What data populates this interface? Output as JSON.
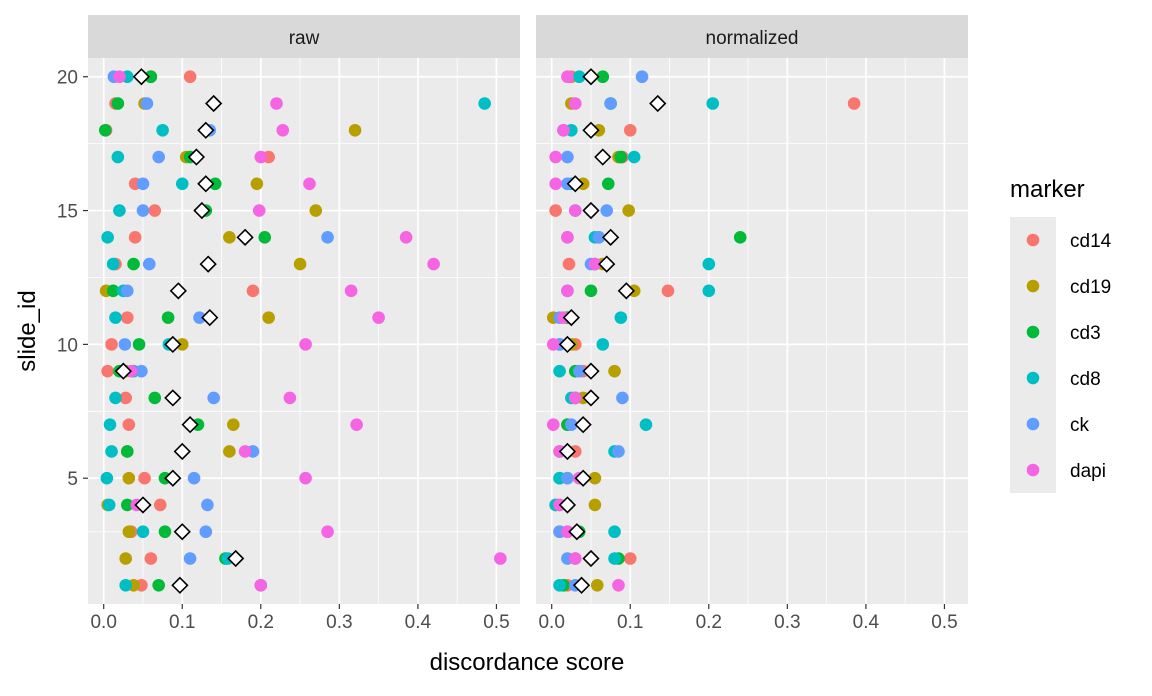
{
  "chart_data": {
    "type": "scatter",
    "xlabel": "discordance score",
    "ylabel": "slide_id",
    "xlim": [
      -0.02,
      0.53
    ],
    "ylim": [
      0.3,
      20.7
    ],
    "x_ticks": [
      "0.0",
      "0.1",
      "0.2",
      "0.3",
      "0.4",
      "0.5"
    ],
    "y_ticks": [
      "5",
      "10",
      "15",
      "20"
    ],
    "grid": true,
    "facets": [
      "raw",
      "normalized"
    ],
    "legend": {
      "title": "marker",
      "position": "right",
      "entries": [
        {
          "name": "cd14",
          "color": "#F8766D"
        },
        {
          "name": "cd19",
          "color": "#B79F00"
        },
        {
          "name": "cd3",
          "color": "#00BA38"
        },
        {
          "name": "cd8",
          "color": "#00BFC4"
        },
        {
          "name": "ck",
          "color": "#619CFF"
        },
        {
          "name": "dapi",
          "color": "#F564E3"
        }
      ]
    },
    "mean_marker": {
      "shape": "open-diamond",
      "color": "#000000"
    },
    "series": {
      "raw": {
        "cd14": [
          [
            0.048,
            1
          ],
          [
            0.06,
            2
          ],
          [
            0.035,
            3
          ],
          [
            0.072,
            4
          ],
          [
            0.052,
            5
          ],
          [
            0.03,
            6
          ],
          [
            0.032,
            7
          ],
          [
            0.028,
            8
          ],
          [
            0.005,
            9
          ],
          [
            0.01,
            10
          ],
          [
            0.03,
            11
          ],
          [
            0.19,
            12
          ],
          [
            0.015,
            13
          ],
          [
            0.04,
            14
          ],
          [
            0.065,
            15
          ],
          [
            0.04,
            16
          ],
          [
            0.21,
            17
          ],
          [
            0.003,
            18
          ],
          [
            0.015,
            19
          ],
          [
            0.11,
            20
          ]
        ],
        "cd19": [
          [
            0.038,
            1
          ],
          [
            0.028,
            2
          ],
          [
            0.032,
            3
          ],
          [
            0.005,
            4
          ],
          [
            0.032,
            5
          ],
          [
            0.16,
            6
          ],
          [
            0.165,
            7
          ],
          [
            0.088,
            8
          ],
          [
            0.028,
            9
          ],
          [
            0.1,
            10
          ],
          [
            0.21,
            11
          ],
          [
            0.003,
            12
          ],
          [
            0.25,
            13
          ],
          [
            0.16,
            14
          ],
          [
            0.27,
            15
          ],
          [
            0.195,
            16
          ],
          [
            0.105,
            17
          ],
          [
            0.32,
            18
          ],
          [
            0.052,
            19
          ],
          [
            0.06,
            20
          ]
        ],
        "cd3": [
          [
            0.07,
            1
          ],
          [
            0.155,
            2
          ],
          [
            0.078,
            3
          ],
          [
            0.03,
            4
          ],
          [
            0.078,
            5
          ],
          [
            0.03,
            6
          ],
          [
            0.12,
            7
          ],
          [
            0.065,
            8
          ],
          [
            0.02,
            9
          ],
          [
            0.045,
            10
          ],
          [
            0.082,
            11
          ],
          [
            0.012,
            12
          ],
          [
            0.038,
            13
          ],
          [
            0.205,
            14
          ],
          [
            0.13,
            15
          ],
          [
            0.142,
            16
          ],
          [
            0.11,
            17
          ],
          [
            0.002,
            18
          ],
          [
            0.018,
            19
          ],
          [
            0.06,
            20
          ]
        ],
        "cd8": [
          [
            0.028,
            1
          ],
          [
            0.158,
            2
          ],
          [
            0.05,
            3
          ],
          [
            0.007,
            4
          ],
          [
            0.004,
            5
          ],
          [
            0.01,
            6
          ],
          [
            0.008,
            7
          ],
          [
            0.015,
            8
          ],
          [
            0.038,
            9
          ],
          [
            0.083,
            10
          ],
          [
            0.015,
            11
          ],
          [
            0.025,
            12
          ],
          [
            0.012,
            13
          ],
          [
            0.005,
            14
          ],
          [
            0.02,
            15
          ],
          [
            0.1,
            16
          ],
          [
            0.018,
            17
          ],
          [
            0.075,
            18
          ],
          [
            0.485,
            19
          ],
          [
            0.03,
            20
          ]
        ],
        "ck": [
          [
            0.2,
            1
          ],
          [
            0.11,
            2
          ],
          [
            0.13,
            3
          ],
          [
            0.132,
            4
          ],
          [
            0.115,
            5
          ],
          [
            0.19,
            6
          ],
          [
            0.11,
            7
          ],
          [
            0.14,
            8
          ],
          [
            0.048,
            9
          ],
          [
            0.027,
            10
          ],
          [
            0.122,
            11
          ],
          [
            0.03,
            12
          ],
          [
            0.058,
            13
          ],
          [
            0.285,
            14
          ],
          [
            0.05,
            15
          ],
          [
            0.05,
            16
          ],
          [
            0.07,
            17
          ],
          [
            0.135,
            18
          ],
          [
            0.055,
            19
          ],
          [
            0.013,
            20
          ]
        ],
        "dapi": [
          [
            0.2,
            1
          ],
          [
            0.505,
            2
          ],
          [
            0.285,
            3
          ],
          [
            0.042,
            4
          ],
          [
            0.257,
            5
          ],
          [
            0.18,
            6
          ],
          [
            0.322,
            7
          ],
          [
            0.237,
            8
          ],
          [
            0.035,
            9
          ],
          [
            0.257,
            10
          ],
          [
            0.35,
            11
          ],
          [
            0.315,
            12
          ],
          [
            0.42,
            13
          ],
          [
            0.385,
            14
          ],
          [
            0.198,
            15
          ],
          [
            0.262,
            16
          ],
          [
            0.2,
            17
          ],
          [
            0.228,
            18
          ],
          [
            0.22,
            19
          ],
          [
            0.02,
            20
          ]
        ]
      },
      "raw_mean": [
        [
          0.097,
          1
        ],
        [
          0.168,
          2
        ],
        [
          0.1,
          3
        ],
        [
          0.05,
          4
        ],
        [
          0.088,
          5
        ],
        [
          0.1,
          6
        ],
        [
          0.11,
          7
        ],
        [
          0.088,
          8
        ],
        [
          0.025,
          9
        ],
        [
          0.088,
          10
        ],
        [
          0.135,
          11
        ],
        [
          0.095,
          12
        ],
        [
          0.133,
          13
        ],
        [
          0.18,
          14
        ],
        [
          0.125,
          15
        ],
        [
          0.13,
          16
        ],
        [
          0.118,
          17
        ],
        [
          0.13,
          18
        ],
        [
          0.14,
          19
        ],
        [
          0.048,
          20
        ]
      ],
      "normalized": {
        "cd14": [
          [
            0.02,
            1
          ],
          [
            0.1,
            2
          ],
          [
            0.02,
            3
          ],
          [
            0.005,
            4
          ],
          [
            0.02,
            5
          ],
          [
            0.03,
            6
          ],
          [
            0.02,
            7
          ],
          [
            0.03,
            8
          ],
          [
            0.04,
            9
          ],
          [
            0.03,
            10
          ],
          [
            0.02,
            11
          ],
          [
            0.148,
            12
          ],
          [
            0.022,
            13
          ],
          [
            0.02,
            14
          ],
          [
            0.005,
            15
          ],
          [
            0.02,
            16
          ],
          [
            0.09,
            17
          ],
          [
            0.1,
            18
          ],
          [
            0.385,
            19
          ],
          [
            0.025,
            20
          ]
        ],
        "cd19": [
          [
            0.058,
            1
          ],
          [
            0.03,
            2
          ],
          [
            0.01,
            3
          ],
          [
            0.055,
            4
          ],
          [
            0.055,
            5
          ],
          [
            0.02,
            6
          ],
          [
            0.04,
            7
          ],
          [
            0.04,
            8
          ],
          [
            0.08,
            9
          ],
          [
            0.025,
            10
          ],
          [
            0.002,
            11
          ],
          [
            0.105,
            12
          ],
          [
            0.065,
            13
          ],
          [
            0.06,
            14
          ],
          [
            0.098,
            15
          ],
          [
            0.04,
            16
          ],
          [
            0.085,
            17
          ],
          [
            0.06,
            18
          ],
          [
            0.025,
            19
          ],
          [
            0.05,
            20
          ]
        ],
        "cd3": [
          [
            0.015,
            1
          ],
          [
            0.085,
            2
          ],
          [
            0.035,
            3
          ],
          [
            0.02,
            4
          ],
          [
            0.01,
            5
          ],
          [
            0.01,
            6
          ],
          [
            0.02,
            7
          ],
          [
            0.03,
            8
          ],
          [
            0.03,
            9
          ],
          [
            0.01,
            10
          ],
          [
            0.02,
            11
          ],
          [
            0.05,
            12
          ],
          [
            0.055,
            13
          ],
          [
            0.24,
            14
          ],
          [
            0.05,
            15
          ],
          [
            0.072,
            16
          ],
          [
            0.088,
            17
          ],
          [
            0.05,
            18
          ],
          [
            0.075,
            19
          ],
          [
            0.065,
            20
          ]
        ],
        "cd8": [
          [
            0.01,
            1
          ],
          [
            0.08,
            2
          ],
          [
            0.08,
            3
          ],
          [
            0.005,
            4
          ],
          [
            0.01,
            5
          ],
          [
            0.08,
            6
          ],
          [
            0.12,
            7
          ],
          [
            0.025,
            8
          ],
          [
            0.01,
            9
          ],
          [
            0.065,
            10
          ],
          [
            0.088,
            11
          ],
          [
            0.2,
            12
          ],
          [
            0.2,
            13
          ],
          [
            0.055,
            14
          ],
          [
            0.03,
            15
          ],
          [
            0.025,
            16
          ],
          [
            0.105,
            17
          ],
          [
            0.025,
            18
          ],
          [
            0.205,
            19
          ],
          [
            0.035,
            20
          ]
        ],
        "ck": [
          [
            0.03,
            1
          ],
          [
            0.02,
            2
          ],
          [
            0.01,
            3
          ],
          [
            0.01,
            4
          ],
          [
            0.02,
            5
          ],
          [
            0.085,
            6
          ],
          [
            0.025,
            7
          ],
          [
            0.09,
            8
          ],
          [
            0.035,
            9
          ],
          [
            0.01,
            10
          ],
          [
            0.01,
            11
          ],
          [
            0.02,
            12
          ],
          [
            0.05,
            13
          ],
          [
            0.06,
            14
          ],
          [
            0.07,
            15
          ],
          [
            0.02,
            16
          ],
          [
            0.02,
            17
          ],
          [
            0.015,
            18
          ],
          [
            0.075,
            19
          ],
          [
            0.115,
            20
          ]
        ],
        "dapi": [
          [
            0.085,
            1
          ],
          [
            0.03,
            2
          ],
          [
            0.02,
            3
          ],
          [
            0.01,
            4
          ],
          [
            0.035,
            5
          ],
          [
            0.01,
            6
          ],
          [
            0.002,
            7
          ],
          [
            0.03,
            8
          ],
          [
            0.05,
            9
          ],
          [
            0.002,
            10
          ],
          [
            0.015,
            11
          ],
          [
            0.02,
            12
          ],
          [
            0.055,
            13
          ],
          [
            0.02,
            14
          ],
          [
            0.03,
            15
          ],
          [
            0.005,
            16
          ],
          [
            0.005,
            17
          ],
          [
            0.015,
            18
          ],
          [
            0.03,
            19
          ],
          [
            0.02,
            20
          ]
        ]
      },
      "normalized_mean": [
        [
          0.038,
          1
        ],
        [
          0.05,
          2
        ],
        [
          0.032,
          3
        ],
        [
          0.02,
          4
        ],
        [
          0.04,
          5
        ],
        [
          0.02,
          6
        ],
        [
          0.04,
          7
        ],
        [
          0.05,
          8
        ],
        [
          0.05,
          9
        ],
        [
          0.02,
          10
        ],
        [
          0.025,
          11
        ],
        [
          0.095,
          12
        ],
        [
          0.07,
          13
        ],
        [
          0.075,
          14
        ],
        [
          0.05,
          15
        ],
        [
          0.03,
          16
        ],
        [
          0.065,
          17
        ],
        [
          0.05,
          18
        ],
        [
          0.135,
          19
        ],
        [
          0.05,
          20
        ]
      ]
    }
  }
}
